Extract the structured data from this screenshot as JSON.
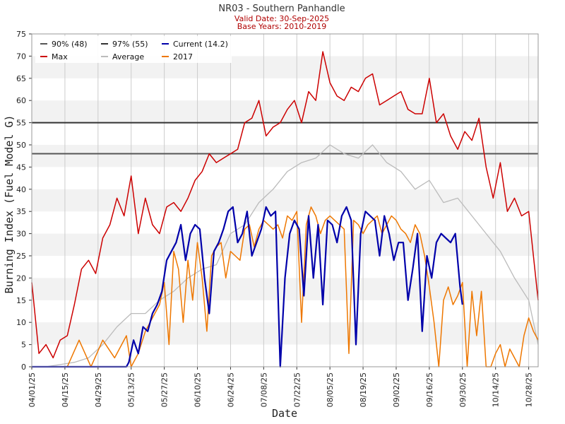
{
  "chart_data": {
    "type": "line",
    "title": "NR03 - Southern Panhandle",
    "subtitle_valid": "Valid Date: 30-Sep-2025",
    "subtitle_base": "Base Years: 2010-2019",
    "xlabel": "Date",
    "ylabel": "Burning Index (Fuel Model G)",
    "ylim": [
      0,
      75
    ],
    "xlim": [
      0,
      214
    ],
    "yticks": [
      0,
      5,
      10,
      15,
      20,
      25,
      30,
      35,
      40,
      45,
      50,
      55,
      60,
      65,
      70,
      75
    ],
    "xticks": [
      {
        "day": 0,
        "label": "04/01/25"
      },
      {
        "day": 14,
        "label": "04/15/25"
      },
      {
        "day": 28,
        "label": "04/29/25"
      },
      {
        "day": 42,
        "label": "05/13/25"
      },
      {
        "day": 56,
        "label": "05/27/25"
      },
      {
        "day": 70,
        "label": "06/10/25"
      },
      {
        "day": 84,
        "label": "06/24/25"
      },
      {
        "day": 98,
        "label": "07/08/25"
      },
      {
        "day": 112,
        "label": "07/22/25"
      },
      {
        "day": 126,
        "label": "08/05/25"
      },
      {
        "day": 140,
        "label": "08/19/25"
      },
      {
        "day": 154,
        "label": "09/02/25"
      },
      {
        "day": 168,
        "label": "09/16/25"
      },
      {
        "day": 182,
        "label": "09/30/25"
      },
      {
        "day": 196,
        "label": "10/14/25"
      },
      {
        "day": 210,
        "label": "10/28/25"
      }
    ],
    "thresholds": [
      {
        "name": "90% (48)",
        "value": 48,
        "color": "#555555"
      },
      {
        "name": "97% (55)",
        "value": 55,
        "color": "#333333"
      }
    ],
    "legend_position": "top-left",
    "legend": [
      "90% (48)",
      "97% (55)",
      "Current (14.2)",
      "Max",
      "Average",
      "2017"
    ],
    "series": [
      {
        "name": "Max",
        "color": "#cc0000",
        "x": [
          0,
          3,
          6,
          9,
          12,
          15,
          18,
          21,
          24,
          27,
          30,
          33,
          36,
          39,
          42,
          45,
          48,
          51,
          54,
          57,
          60,
          63,
          66,
          69,
          72,
          75,
          78,
          81,
          84,
          87,
          90,
          93,
          96,
          99,
          102,
          105,
          108,
          111,
          114,
          117,
          120,
          123,
          126,
          129,
          132,
          135,
          138,
          141,
          144,
          147,
          150,
          153,
          156,
          159,
          162,
          165,
          168,
          171,
          174,
          177,
          180,
          183,
          186,
          189,
          192,
          195,
          198,
          201,
          204,
          207,
          210,
          213,
          214
        ],
        "values": [
          19,
          3,
          5,
          2,
          6,
          7,
          14,
          22,
          24,
          21,
          29,
          32,
          38,
          34,
          43,
          30,
          38,
          32,
          30,
          36,
          37,
          35,
          38,
          42,
          44,
          48,
          46,
          47,
          48,
          49,
          55,
          56,
          60,
          52,
          54,
          55,
          58,
          60,
          55,
          62,
          60,
          71,
          64,
          61,
          60,
          63,
          62,
          65,
          66,
          59,
          60,
          61,
          62,
          58,
          57,
          57,
          65,
          55,
          57,
          52,
          49,
          53,
          51,
          56,
          45,
          38,
          46,
          35,
          38,
          34,
          35,
          20,
          15
        ]
      },
      {
        "name": "Average",
        "color": "#bbbbbb",
        "x": [
          0,
          6,
          12,
          18,
          24,
          30,
          36,
          42,
          48,
          54,
          60,
          66,
          72,
          78,
          84,
          90,
          96,
          102,
          108,
          114,
          120,
          126,
          132,
          138,
          144,
          150,
          156,
          162,
          168,
          174,
          180,
          186,
          192,
          198,
          204,
          210,
          214
        ],
        "values": [
          0,
          0,
          0.5,
          1,
          2,
          5,
          9,
          12,
          12,
          15,
          17,
          20,
          22,
          23,
          30,
          32,
          37,
          40,
          44,
          46,
          47,
          50,
          48,
          47,
          50,
          46,
          44,
          40,
          42,
          37,
          38,
          34,
          30,
          26,
          20,
          15,
          5
        ]
      },
      {
        "name": "Current (14.2)",
        "color": "#0000aa",
        "x": [
          0,
          10,
          20,
          30,
          40,
          41,
          43,
          45,
          47,
          49,
          51,
          53,
          55,
          57,
          59,
          61,
          63,
          65,
          67,
          69,
          71,
          73,
          75,
          77,
          79,
          81,
          83,
          85,
          87,
          89,
          91,
          93,
          95,
          97,
          99,
          101,
          103,
          105,
          107,
          109,
          111,
          113,
          115,
          117,
          119,
          121,
          123,
          125,
          127,
          129,
          131,
          133,
          135,
          137,
          139,
          141,
          143,
          145,
          147,
          149,
          151,
          153,
          155,
          157,
          159,
          161,
          163,
          165,
          167,
          169,
          171,
          173,
          175,
          177,
          179,
          181,
          182
        ],
        "values": [
          0,
          0,
          0,
          0,
          0,
          1,
          6,
          3,
          9,
          8,
          12,
          14,
          17,
          24,
          26,
          28,
          32,
          24,
          30,
          32,
          31,
          20,
          12,
          26,
          28,
          31,
          35,
          36,
          28,
          30,
          35,
          25,
          28,
          31,
          36,
          34,
          35,
          0,
          20,
          30,
          33,
          31,
          16,
          34,
          20,
          32,
          14,
          33,
          32,
          28,
          34,
          36,
          33,
          5,
          30,
          35,
          34,
          33,
          25,
          34,
          30,
          24,
          28,
          28,
          15,
          22,
          30,
          8,
          25,
          20,
          28,
          30,
          29,
          28,
          30,
          18,
          14
        ]
      },
      {
        "name": "2017",
        "color": "#ee7700",
        "x": [
          0,
          15,
          20,
          25,
          30,
          35,
          40,
          42,
          45,
          48,
          50,
          52,
          54,
          56,
          58,
          60,
          62,
          64,
          66,
          68,
          70,
          72,
          74,
          76,
          78,
          80,
          82,
          84,
          86,
          88,
          90,
          92,
          94,
          96,
          98,
          100,
          102,
          104,
          106,
          108,
          110,
          112,
          114,
          116,
          118,
          120,
          122,
          124,
          126,
          128,
          130,
          132,
          134,
          136,
          138,
          140,
          142,
          144,
          146,
          148,
          150,
          152,
          154,
          156,
          158,
          160,
          162,
          164,
          166,
          168,
          170,
          172,
          174,
          176,
          178,
          180,
          182,
          184,
          186,
          188,
          190,
          192,
          194,
          196,
          198,
          200,
          202,
          204,
          206,
          208,
          210,
          212,
          214
        ],
        "values": [
          0,
          0,
          6,
          0,
          6,
          2,
          7,
          0,
          3,
          8,
          10,
          12,
          14,
          19,
          5,
          26,
          22,
          10,
          24,
          15,
          28,
          20,
          8,
          25,
          27,
          28,
          20,
          26,
          25,
          24,
          31,
          32,
          27,
          31,
          33,
          32,
          31,
          32,
          29,
          34,
          33,
          35,
          10,
          32,
          36,
          34,
          30,
          33,
          34,
          33,
          32,
          31,
          3,
          33,
          32,
          30,
          32,
          33,
          34,
          30,
          32,
          34,
          33,
          31,
          30,
          28,
          32,
          30,
          25,
          18,
          10,
          0,
          15,
          18,
          14,
          16,
          19,
          0,
          17,
          7,
          17,
          0,
          0,
          3,
          5,
          0,
          4,
          2,
          0,
          7,
          11,
          8,
          6
        ]
      }
    ]
  }
}
